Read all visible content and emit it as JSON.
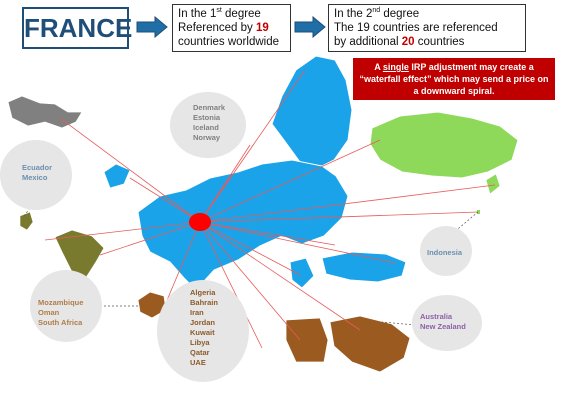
{
  "header": {
    "country": "FRANCE",
    "first_degree": {
      "line1_pre": "In the 1",
      "line1_sup": "st",
      "line1_post": " degree",
      "line2_pre": "Referenced by ",
      "line2_num": "19",
      "line3": "countries worldwide"
    },
    "second_degree": {
      "line1_pre": "In the 2",
      "line1_sup": "nd",
      "line1_post": " degree",
      "line2": "The 19 countries  are referenced",
      "line3_pre": "by additional ",
      "line3_num": "20",
      "line3_post": " countries"
    }
  },
  "alert": {
    "pre": "A ",
    "emph": "single",
    "post": " IRP adjustment may create a “waterfall effect” which may send a price on a downward spiral."
  },
  "groups": {
    "nordic": {
      "color": "#808080",
      "items": [
        "Denmark",
        "Estonia",
        "Iceland",
        "Norway"
      ]
    },
    "latam": {
      "color": "#6a8faf",
      "items": [
        "Ecuador",
        "Mexico"
      ]
    },
    "africa": {
      "color": "#b07c4b",
      "items": [
        "Mozambique",
        "Oman",
        "South Africa"
      ]
    },
    "mena": {
      "color": "#8c5a2b",
      "items": [
        "Algeria",
        "Bahrain",
        "Iran",
        "Jordan",
        "Kuwait",
        "Libya",
        "Qatar",
        "UAE"
      ]
    },
    "indonesia": {
      "color": "#6a8faf",
      "items": [
        "Indonesia"
      ]
    },
    "oceania": {
      "color": "#8e5fa8",
      "items": [
        "Australia",
        "New Zealand"
      ]
    }
  },
  "colors": {
    "europe": "#1aa3e8",
    "russia": "#8ed85a",
    "middle_east": "#9b5a1f",
    "canada": "#808080",
    "brazil": "#7a7a2e",
    "origin": "#ff0000",
    "lines": "#e85a5a"
  }
}
